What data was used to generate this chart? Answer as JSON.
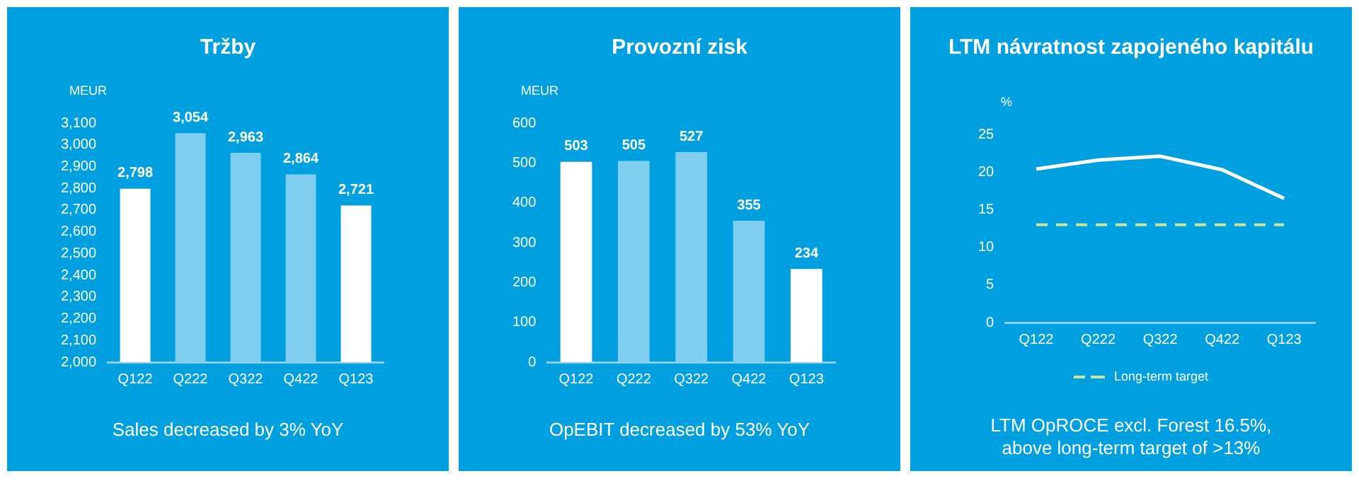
{
  "chart_data": [
    {
      "type": "bar",
      "title": "Tržby",
      "ylabel": "MEUR",
      "categories": [
        "Q122",
        "Q222",
        "Q322",
        "Q422",
        "Q123"
      ],
      "values": [
        2798,
        3054,
        2963,
        2864,
        2721
      ],
      "colors": [
        "#ffffff",
        "#80cff0",
        "#80cff0",
        "#80cff0",
        "#ffffff"
      ],
      "ylim": [
        2000,
        3100
      ],
      "yticks": [
        {
          "value": 2000,
          "label": "2,000"
        },
        {
          "value": 2100,
          "label": "2,100"
        },
        {
          "value": 2200,
          "label": "2,200"
        },
        {
          "value": 2300,
          "label": "2,300"
        },
        {
          "value": 2400,
          "label": "2,400"
        },
        {
          "value": 2500,
          "label": "2,500"
        },
        {
          "value": 2600,
          "label": "2,600"
        },
        {
          "value": 2700,
          "label": "2,700"
        },
        {
          "value": 2800,
          "label": "2,800"
        },
        {
          "value": 2900,
          "label": "2,900"
        },
        {
          "value": 3000,
          "label": "3,000"
        },
        {
          "value": 3100,
          "label": "3,100"
        }
      ],
      "value_labels": [
        "2,798",
        "3,054",
        "2,963",
        "2,864",
        "2,721"
      ],
      "grid": false,
      "legend": false,
      "annotations": [
        "Sales decreased by 3% YoY"
      ]
    },
    {
      "type": "bar",
      "title": "Provozní zisk",
      "ylabel": "MEUR",
      "categories": [
        "Q122",
        "Q222",
        "Q322",
        "Q422",
        "Q123"
      ],
      "values": [
        503,
        505,
        527,
        355,
        234
      ],
      "colors": [
        "#ffffff",
        "#80cff0",
        "#80cff0",
        "#80cff0",
        "#ffffff"
      ],
      "ylim": [
        0,
        600
      ],
      "yticks": [
        0,
        100,
        200,
        300,
        400,
        500,
        600
      ],
      "data_labels": true,
      "grid": false,
      "legend": false,
      "annotations": [
        "OpEBIT decreased by 53% YoY"
      ]
    },
    {
      "type": "line",
      "title": "LTM návratnost zapojeného kapitálu",
      "ylabel": "%",
      "categories": [
        "Q122",
        "Q222",
        "Q322",
        "Q422",
        "Q123"
      ],
      "values": [
        20.4,
        21.6,
        22.1,
        20.3,
        16.5
      ],
      "color": "#ffffff",
      "marker": "none",
      "ylim": [
        0,
        25
      ],
      "yticks": [
        0,
        5,
        10,
        15,
        20,
        25
      ],
      "grid": false,
      "legend": "bottom",
      "ref_lines": [
        {
          "axis": "y",
          "value": 13,
          "label": "Long-term target",
          "color": "#c8e6a0",
          "line_style": "dashed"
        }
      ],
      "annotations": [
        "LTM OpROCE excl. Forest 16.5%,\nabove long-term target of >13%"
      ]
    }
  ]
}
